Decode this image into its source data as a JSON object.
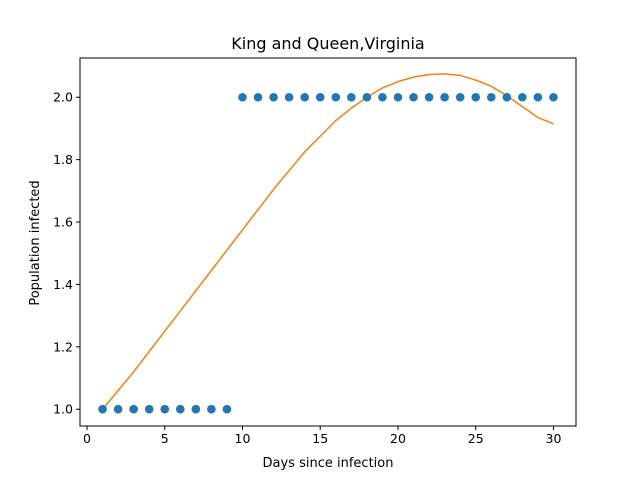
{
  "chart_data": {
    "type": "scatter",
    "title": "King and Queen,Virginia",
    "xlabel": "Days since infection",
    "ylabel": "Population infected",
    "xlim": [
      -0.45,
      31.45
    ],
    "ylim": [
      0.9462,
      2.1258
    ],
    "xticks": [
      0,
      5,
      10,
      15,
      20,
      25,
      30
    ],
    "yticks": [
      1.0,
      1.2,
      1.4,
      1.6,
      1.8,
      2.0
    ],
    "ytick_labels": [
      "1.0",
      "1.2",
      "1.4",
      "1.6",
      "1.8",
      "2.0"
    ],
    "grid": false,
    "series": [
      {
        "type": "scatter",
        "color": "#1f77b4",
        "x": [
          1,
          2,
          3,
          4,
          5,
          6,
          7,
          8,
          9,
          10,
          11,
          12,
          13,
          14,
          15,
          16,
          17,
          18,
          19,
          20,
          21,
          22,
          23,
          24,
          25,
          26,
          27,
          28,
          29,
          30
        ],
        "y": [
          1,
          1,
          1,
          1,
          1,
          1,
          1,
          1,
          1,
          2,
          2,
          2,
          2,
          2,
          2,
          2,
          2,
          2,
          2,
          2,
          2,
          2,
          2,
          2,
          2,
          2,
          2,
          2,
          2,
          2
        ]
      },
      {
        "type": "line",
        "color": "#ff7f0e",
        "x": [
          1,
          2,
          3,
          4,
          5,
          6,
          7,
          8,
          9,
          10,
          11,
          12,
          13,
          14,
          15,
          16,
          17,
          18,
          19,
          20,
          21,
          22,
          23,
          24,
          25,
          26,
          27,
          28,
          29,
          30
        ],
        "y": [
          1.0,
          1.06,
          1.12,
          1.185,
          1.25,
          1.315,
          1.38,
          1.445,
          1.51,
          1.575,
          1.64,
          1.705,
          1.765,
          1.825,
          1.875,
          1.925,
          1.965,
          2.0,
          2.03,
          2.05,
          2.065,
          2.073,
          2.075,
          2.07,
          2.055,
          2.035,
          2.005,
          1.97,
          1.935,
          1.915
        ]
      }
    ]
  }
}
